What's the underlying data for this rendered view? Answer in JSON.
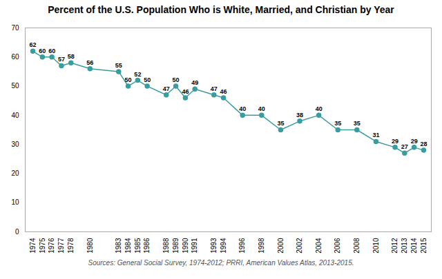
{
  "chart_data": {
    "type": "line",
    "title": "Percent of the U.S. Population Who is White, Married, and Christian by Year",
    "x": [
      1974,
      1975,
      1976,
      1977,
      1978,
      1980,
      1983,
      1984,
      1985,
      1986,
      1988,
      1989,
      1990,
      1991,
      1993,
      1994,
      1996,
      1998,
      2000,
      2002,
      2004,
      2006,
      2008,
      2010,
      2012,
      2013,
      2014,
      2015
    ],
    "values": [
      62,
      60,
      60,
      57,
      58,
      56,
      55,
      50,
      52,
      50,
      47,
      50,
      46,
      49,
      47,
      46,
      40,
      40,
      35,
      38,
      40,
      35,
      35,
      31,
      29,
      27,
      29,
      28
    ],
    "color": "#3a9d9d",
    "marker": "circle",
    "data_labels": true,
    "xlim": [
      1973.2,
      2015.8
    ],
    "xticks": [
      1974,
      1975,
      1976,
      1977,
      1978,
      1980,
      1983,
      1984,
      1985,
      1986,
      1988,
      1989,
      1990,
      1991,
      1993,
      1994,
      1996,
      1998,
      2000,
      2002,
      2004,
      2006,
      2008,
      2010,
      2012,
      2013,
      2014,
      2015
    ],
    "ylim": [
      0,
      70
    ],
    "yticks": [
      0,
      10,
      20,
      30,
      40,
      50,
      60,
      70
    ],
    "grid": false,
    "annotations": [
      "Sources: General Social Survey, 1974-2012; PRRI, American Values Atlas, 2013-2015."
    ]
  }
}
